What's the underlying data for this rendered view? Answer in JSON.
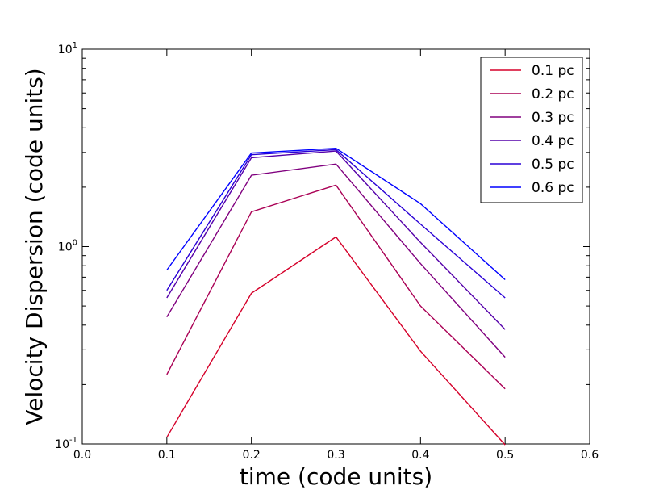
{
  "chart_data": {
    "type": "line",
    "title": "",
    "xlabel": "time (code units)",
    "ylabel": "Velocity Dispersion (code units)",
    "xlim": [
      0.0,
      0.6
    ],
    "ylim": [
      0.1,
      10
    ],
    "yscale": "log",
    "grid": false,
    "legend_position": "top-right",
    "xticks": [
      "0.0",
      "0.1",
      "0.2",
      "0.3",
      "0.4",
      "0.5",
      "0.6"
    ],
    "yticks": [
      {
        "value": 0.1,
        "base": "10",
        "exp": "-1"
      },
      {
        "value": 1,
        "base": "10",
        "exp": "0"
      },
      {
        "value": 10,
        "base": "10",
        "exp": "1"
      }
    ],
    "x": [
      0.1,
      0.2,
      0.3,
      0.4,
      0.5
    ],
    "series": [
      {
        "name": "0.1 pc",
        "color": "#d5002a",
        "values": [
          0.108,
          0.58,
          1.12,
          0.295,
          0.099
        ]
      },
      {
        "name": "0.2 pc",
        "color": "#aa0055",
        "values": [
          0.225,
          1.5,
          2.05,
          0.5,
          0.19
        ]
      },
      {
        "name": "0.3 pc",
        "color": "#80007f",
        "values": [
          0.44,
          2.3,
          2.62,
          0.82,
          0.275
        ]
      },
      {
        "name": "0.4 pc",
        "color": "#5500aa",
        "values": [
          0.55,
          2.82,
          3.05,
          1.05,
          0.38
        ]
      },
      {
        "name": "0.5 pc",
        "color": "#2a00d5",
        "values": [
          0.6,
          2.92,
          3.1,
          1.3,
          0.55
        ]
      },
      {
        "name": "0.6 pc",
        "color": "#0000ff",
        "values": [
          0.76,
          2.98,
          3.15,
          1.65,
          0.68
        ]
      }
    ]
  }
}
